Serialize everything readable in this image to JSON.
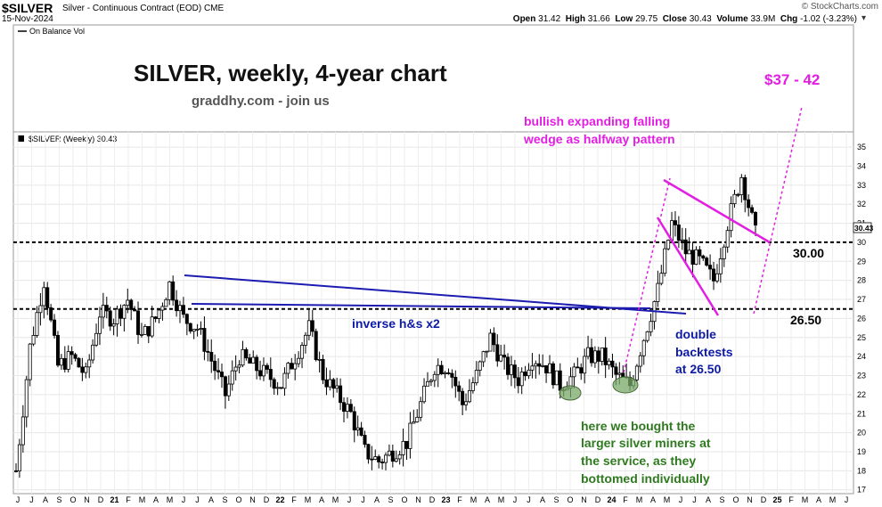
{
  "header": {
    "symbol": "$SILVER",
    "description": "Silver - Continuous Contract (EOD)",
    "exchange": "CME",
    "date": "15-Nov-2024",
    "logo": "© StockCharts.com",
    "open_label": "Open",
    "open": "31.42",
    "high_label": "High",
    "high": "31.66",
    "low_label": "Low",
    "low": "29.75",
    "close_label": "Close",
    "close": "30.43",
    "volume_label": "Volume",
    "volume": "33.9M",
    "chg_label": "Chg",
    "chg": "-1.02 (-3.23%)"
  },
  "indicator_panel": {
    "label": "On Balance Vol"
  },
  "price_panel": {
    "label": "$SILVER (Weekly) 30.43",
    "last_price_tag": "30.43"
  },
  "annotations": {
    "title": "SILVER, weekly, 4-year chart",
    "subtitle": "graddhy.com - join us",
    "target": "$37 - 42",
    "wedge_line1": "bullish expanding falling",
    "wedge_line2": "wedge as halfway pattern",
    "level_30": "30.00",
    "level_2650": "26.50",
    "inverse_hs": "inverse h&s x2",
    "backtest_line1": "double",
    "backtest_line2": "backtests",
    "backtest_line3": "at 26.50",
    "miners_line1": "here we bought the",
    "miners_line2": "larger silver miners at",
    "miners_line3": "the service, as they",
    "miners_line4": "bottomed individually"
  },
  "colors": {
    "candle": "#000000",
    "support_line": "#000000",
    "trendline": "#1c1cb0",
    "wedge": "#e21ee2",
    "annotation_blue": "#0d1aa8",
    "annotation_magenta": "#e21ee2",
    "annotation_green": "#2f7a1f",
    "bottom_marker": "#7aa86a"
  },
  "chart_data": {
    "type": "candlestick",
    "title": "SILVER, weekly, 4-year chart",
    "frequency": "weekly",
    "ylim": [
      16.8,
      35.8
    ],
    "y_ticks": [
      17,
      18,
      19,
      20,
      21,
      22,
      23,
      24,
      25,
      26,
      27,
      28,
      29,
      30,
      31,
      32,
      33,
      34,
      35
    ],
    "x_tick_labels": [
      "J",
      "J",
      "A",
      "S",
      "O",
      "N",
      "D",
      "21",
      "F",
      "M",
      "A",
      "M",
      "J",
      "J",
      "A",
      "S",
      "O",
      "N",
      "D",
      "22",
      "F",
      "M",
      "A",
      "M",
      "J",
      "J",
      "A",
      "S",
      "O",
      "N",
      "D",
      "23",
      "F",
      "M",
      "A",
      "M",
      "J",
      "J",
      "A",
      "S",
      "O",
      "N",
      "D",
      "24",
      "F",
      "M",
      "A",
      "M",
      "J",
      "J",
      "A",
      "S",
      "O",
      "N",
      "D",
      "25",
      "F",
      "M",
      "A",
      "M",
      "J"
    ],
    "grid": true,
    "horizontal_levels": [
      30.0,
      26.5
    ],
    "close_series": [
      {
        "date": "2020-06",
        "close": 18.0
      },
      {
        "date": "2020-07",
        "close": 24.5
      },
      {
        "date": "2020-08",
        "close": 28.0
      },
      {
        "date": "2020-09",
        "close": 23.5
      },
      {
        "date": "2020-10",
        "close": 24.0
      },
      {
        "date": "2020-11",
        "close": 23.0
      },
      {
        "date": "2020-12",
        "close": 26.3
      },
      {
        "date": "2021-01",
        "close": 26.0
      },
      {
        "date": "2021-02",
        "close": 27.0
      },
      {
        "date": "2021-03",
        "close": 25.0
      },
      {
        "date": "2021-04",
        "close": 26.0
      },
      {
        "date": "2021-05",
        "close": 27.8
      },
      {
        "date": "2021-06",
        "close": 26.0
      },
      {
        "date": "2021-07",
        "close": 25.5
      },
      {
        "date": "2021-08",
        "close": 23.8
      },
      {
        "date": "2021-09",
        "close": 22.0
      },
      {
        "date": "2021-10",
        "close": 24.0
      },
      {
        "date": "2021-11",
        "close": 23.5
      },
      {
        "date": "2021-12",
        "close": 23.0
      },
      {
        "date": "2022-01",
        "close": 22.5
      },
      {
        "date": "2022-02",
        "close": 24.0
      },
      {
        "date": "2022-03",
        "close": 25.5
      },
      {
        "date": "2022-04",
        "close": 23.0
      },
      {
        "date": "2022-05",
        "close": 22.0
      },
      {
        "date": "2022-06",
        "close": 21.0
      },
      {
        "date": "2022-07",
        "close": 19.0
      },
      {
        "date": "2022-08",
        "close": 18.5
      },
      {
        "date": "2022-09",
        "close": 19.0
      },
      {
        "date": "2022-10",
        "close": 19.5
      },
      {
        "date": "2022-11",
        "close": 21.5
      },
      {
        "date": "2022-12",
        "close": 23.5
      },
      {
        "date": "2023-01",
        "close": 23.5
      },
      {
        "date": "2023-02",
        "close": 21.5
      },
      {
        "date": "2023-03",
        "close": 23.0
      },
      {
        "date": "2023-04",
        "close": 25.0
      },
      {
        "date": "2023-05",
        "close": 23.5
      },
      {
        "date": "2023-06",
        "close": 22.8
      },
      {
        "date": "2023-07",
        "close": 24.0
      },
      {
        "date": "2023-08",
        "close": 23.5
      },
      {
        "date": "2023-09",
        "close": 22.5
      },
      {
        "date": "2023-10",
        "close": 23.0
      },
      {
        "date": "2023-11",
        "close": 24.0
      },
      {
        "date": "2023-12",
        "close": 24.0
      },
      {
        "date": "2024-01",
        "close": 23.0
      },
      {
        "date": "2024-02",
        "close": 22.5
      },
      {
        "date": "2024-03",
        "close": 25.0
      },
      {
        "date": "2024-04",
        "close": 27.5
      },
      {
        "date": "2024-05",
        "close": 31.0
      },
      {
        "date": "2024-06",
        "close": 29.5
      },
      {
        "date": "2024-07",
        "close": 29.0
      },
      {
        "date": "2024-08",
        "close": 28.0
      },
      {
        "date": "2024-09",
        "close": 31.0
      },
      {
        "date": "2024-10",
        "close": 33.5
      },
      {
        "date": "2024-11",
        "close": 30.43
      }
    ]
  }
}
